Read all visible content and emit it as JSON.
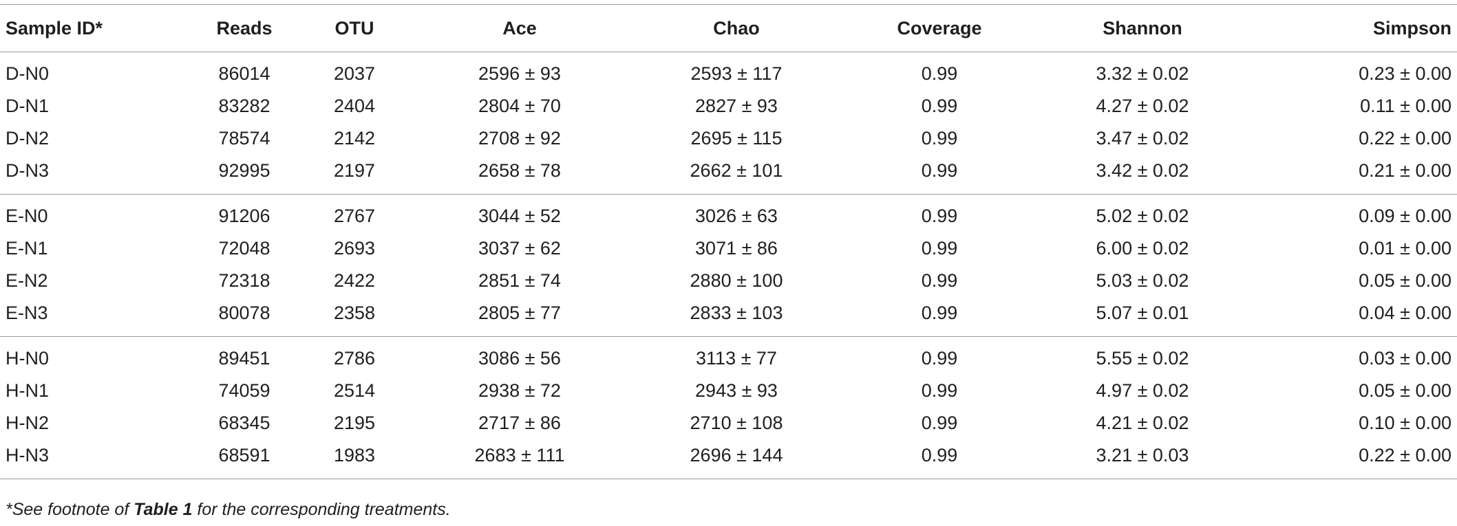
{
  "table": {
    "columns": [
      "Sample ID*",
      "Reads",
      "OTU",
      "Ace",
      "Chao",
      "Coverage",
      "Shannon",
      "Simpson"
    ],
    "groups": [
      [
        [
          "D-N0",
          "86014",
          "2037",
          "2596 ± 93",
          "2593 ± 117",
          "0.99",
          "3.32 ± 0.02",
          "0.23 ± 0.00"
        ],
        [
          "D-N1",
          "83282",
          "2404",
          "2804 ± 70",
          "2827 ± 93",
          "0.99",
          "4.27 ± 0.02",
          "0.11 ± 0.00"
        ],
        [
          "D-N2",
          "78574",
          "2142",
          "2708 ± 92",
          "2695 ± 115",
          "0.99",
          "3.47 ± 0.02",
          "0.22 ± 0.00"
        ],
        [
          "D-N3",
          "92995",
          "2197",
          "2658 ± 78",
          "2662 ± 101",
          "0.99",
          "3.42 ± 0.02",
          "0.21 ± 0.00"
        ]
      ],
      [
        [
          "E-N0",
          "91206",
          "2767",
          "3044 ± 52",
          "3026 ± 63",
          "0.99",
          "5.02 ± 0.02",
          "0.09 ± 0.00"
        ],
        [
          "E-N1",
          "72048",
          "2693",
          "3037 ± 62",
          "3071 ± 86",
          "0.99",
          "6.00 ± 0.02",
          "0.01 ± 0.00"
        ],
        [
          "E-N2",
          "72318",
          "2422",
          "2851 ± 74",
          "2880 ± 100",
          "0.99",
          "5.03 ± 0.02",
          "0.05 ± 0.00"
        ],
        [
          "E-N3",
          "80078",
          "2358",
          "2805 ± 77",
          "2833 ± 103",
          "0.99",
          "5.07 ± 0.01",
          "0.04 ± 0.00"
        ]
      ],
      [
        [
          "H-N0",
          "89451",
          "2786",
          "3086 ± 56",
          "3113 ± 77",
          "0.99",
          "5.55 ± 0.02",
          "0.03 ± 0.00"
        ],
        [
          "H-N1",
          "74059",
          "2514",
          "2938 ± 72",
          "2943 ± 93",
          "0.99",
          "4.97 ± 0.02",
          "0.05 ± 0.00"
        ],
        [
          "H-N2",
          "68345",
          "2195",
          "2717 ± 86",
          "2710 ± 108",
          "0.99",
          "4.21 ± 0.02",
          "0.10 ± 0.00"
        ],
        [
          "H-N3",
          "68591",
          "1983",
          "2683 ± 111",
          "2696 ± 144",
          "0.99",
          "3.21 ± 0.03",
          "0.22 ± 0.00"
        ]
      ]
    ]
  },
  "footnote": {
    "prefix": "*See footnote of ",
    "ref": "Table 1",
    "suffix": " for the corresponding treatments."
  }
}
